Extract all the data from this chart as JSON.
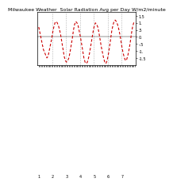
{
  "title": "Milwaukee Weather  Solar Radiation Avg per Day W/m2/minute",
  "background_color": "#ffffff",
  "line_color": "#cc0000",
  "grid_color": "#aaaaaa",
  "ylim": [
    -2.0,
    1.8
  ],
  "values": [
    0.7,
    0.3,
    -0.1,
    -0.5,
    -0.9,
    -1.1,
    -1.3,
    -1.5,
    -1.4,
    -1.0,
    -0.6,
    -0.2,
    0.3,
    0.7,
    1.0,
    1.1,
    1.0,
    0.8,
    0.5,
    0.1,
    -0.4,
    -0.9,
    -1.4,
    -1.7,
    -1.8,
    -1.7,
    -1.5,
    -1.1,
    -0.6,
    -0.1,
    0.5,
    0.9,
    1.1,
    1.0,
    0.8,
    0.4,
    0.0,
    -0.5,
    -1.0,
    -1.5,
    -1.8,
    -1.9,
    -1.8,
    -1.5,
    -1.1,
    -0.6,
    -0.1,
    0.4,
    0.8,
    1.0,
    0.9,
    0.7,
    0.3,
    -0.2,
    -0.7,
    -1.1,
    -1.5,
    -1.8,
    -1.9,
    -1.7,
    -1.3,
    -0.8,
    -0.2,
    0.4,
    0.8,
    1.1,
    1.2,
    1.1,
    0.9,
    0.6,
    0.2,
    -0.3,
    -0.8,
    -1.2,
    -1.5,
    -1.7,
    -1.6,
    -1.3,
    -0.9,
    -0.4,
    0.2,
    0.7,
    1.0,
    1.1
  ],
  "vline_positions": [
    11.5,
    23.5,
    35.5,
    47.5,
    59.5,
    71.5
  ],
  "yticks": [
    1.5,
    1.0,
    0.5,
    0.0,
    -0.5,
    -1.0,
    -1.5
  ],
  "ytick_labels": [
    "1.5",
    "1.",
    ".5",
    "0.",
    "-.5",
    "-1.",
    "-1.5"
  ],
  "title_fontsize": 4.5,
  "tick_fontsize": 3.5,
  "line_width": 0.8,
  "dash_on": 3,
  "dash_off": 2
}
